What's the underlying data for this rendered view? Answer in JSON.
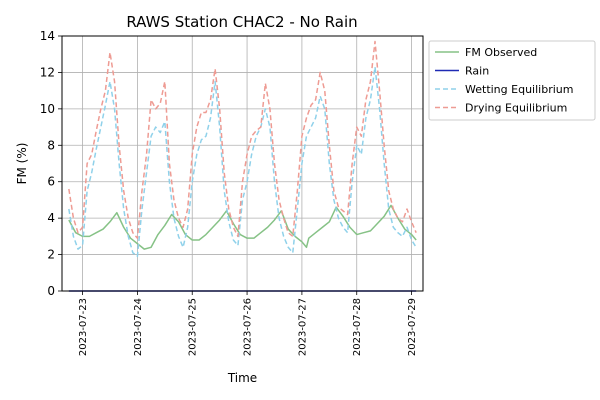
{
  "chart_data": {
    "type": "line",
    "title": "RAWS Station CHAC2 - No Rain",
    "xlabel": "Time",
    "ylabel": "FM (%)",
    "ylim": [
      0,
      14
    ],
    "yticks": [
      "0",
      "2",
      "4",
      "6",
      "8",
      "10",
      "12",
      "14"
    ],
    "xlim": [
      "2023-07-22T15:00",
      "2023-07-29T05:00"
    ],
    "xticks": [
      "2023-07-23",
      "2023-07-24",
      "2023-07-25",
      "2023-07-26",
      "2023-07-27",
      "2023-07-28",
      "2023-07-29"
    ],
    "grid": true,
    "legend_position": "upper-right",
    "x_start": "2023-07-22T18:00",
    "x_end": "2023-07-29T02:00",
    "series": [
      {
        "name": "FM Observed",
        "color": "#86c286",
        "style": "solid",
        "points": [
          [
            "2023-07-22T18:00",
            3.9
          ],
          [
            "2023-07-22T21:00",
            3.2
          ],
          [
            "2023-07-23T00:00",
            3.0
          ],
          [
            "2023-07-23T03:00",
            3.0
          ],
          [
            "2023-07-23T06:00",
            3.2
          ],
          [
            "2023-07-23T09:00",
            3.4
          ],
          [
            "2023-07-23T12:00",
            3.8
          ],
          [
            "2023-07-23T15:00",
            4.3
          ],
          [
            "2023-07-23T18:00",
            3.5
          ],
          [
            "2023-07-23T21:00",
            2.9
          ],
          [
            "2023-07-24T00:00",
            2.6
          ],
          [
            "2023-07-24T03:00",
            2.3
          ],
          [
            "2023-07-24T06:00",
            2.4
          ],
          [
            "2023-07-24T09:00",
            3.1
          ],
          [
            "2023-07-24T12:00",
            3.6
          ],
          [
            "2023-07-24T15:00",
            4.2
          ],
          [
            "2023-07-24T18:00",
            3.8
          ],
          [
            "2023-07-24T21:00",
            3.1
          ],
          [
            "2023-07-25T00:00",
            2.8
          ],
          [
            "2023-07-25T03:00",
            2.8
          ],
          [
            "2023-07-25T06:00",
            3.1
          ],
          [
            "2023-07-25T09:00",
            3.5
          ],
          [
            "2023-07-25T12:00",
            3.9
          ],
          [
            "2023-07-25T15:00",
            4.4
          ],
          [
            "2023-07-25T18:00",
            3.7
          ],
          [
            "2023-07-25T21:00",
            3.1
          ],
          [
            "2023-07-26T00:00",
            2.9
          ],
          [
            "2023-07-26T03:00",
            2.9
          ],
          [
            "2023-07-26T06:00",
            3.2
          ],
          [
            "2023-07-26T09:00",
            3.5
          ],
          [
            "2023-07-26T12:00",
            3.9
          ],
          [
            "2023-07-26T15:00",
            4.4
          ],
          [
            "2023-07-26T18:00",
            3.4
          ],
          [
            "2023-07-26T21:00",
            3.0
          ],
          [
            "2023-07-27T00:00",
            2.7
          ],
          [
            "2023-07-27T02:00",
            2.4
          ],
          [
            "2023-07-27T03:00",
            2.9
          ],
          [
            "2023-07-27T06:00",
            3.2
          ],
          [
            "2023-07-27T09:00",
            3.5
          ],
          [
            "2023-07-27T12:00",
            3.8
          ],
          [
            "2023-07-27T15:00",
            4.6
          ],
          [
            "2023-07-27T18:00",
            4.1
          ],
          [
            "2023-07-27T21:00",
            3.5
          ],
          [
            "2023-07-28T00:00",
            3.1
          ],
          [
            "2023-07-28T03:00",
            3.2
          ],
          [
            "2023-07-28T06:00",
            3.3
          ],
          [
            "2023-07-28T09:00",
            3.7
          ],
          [
            "2023-07-28T12:00",
            4.1
          ],
          [
            "2023-07-28T15:00",
            4.7
          ],
          [
            "2023-07-28T18:00",
            4.0
          ],
          [
            "2023-07-28T21:00",
            3.4
          ],
          [
            "2023-07-29T00:00",
            3.1
          ],
          [
            "2023-07-29T02:00",
            2.8
          ]
        ]
      },
      {
        "name": "Rain",
        "color": "#1f2ab4",
        "style": "solid",
        "points": [
          [
            "2023-07-22T18:00",
            0
          ],
          [
            "2023-07-29T02:00",
            0
          ]
        ]
      },
      {
        "name": "Wetting Equilibrium",
        "color": "#8fd1ea",
        "style": "dashed",
        "points": [
          [
            "2023-07-22T18:00",
            4.5
          ],
          [
            "2023-07-22T20:00",
            3.0
          ],
          [
            "2023-07-22T22:00",
            2.3
          ],
          [
            "2023-07-23T00:00",
            2.5
          ],
          [
            "2023-07-23T02:00",
            5.5
          ],
          [
            "2023-07-23T04:00",
            6.5
          ],
          [
            "2023-07-23T06:00",
            7.8
          ],
          [
            "2023-07-23T08:00",
            9.0
          ],
          [
            "2023-07-23T10:00",
            10.2
          ],
          [
            "2023-07-23T12:00",
            11.5
          ],
          [
            "2023-07-23T14:00",
            10.0
          ],
          [
            "2023-07-23T16:00",
            7.0
          ],
          [
            "2023-07-23T18:00",
            4.5
          ],
          [
            "2023-07-23T20:00",
            3.0
          ],
          [
            "2023-07-23T22:00",
            2.1
          ],
          [
            "2023-07-24T00:00",
            1.9
          ],
          [
            "2023-07-24T02:00",
            4.5
          ],
          [
            "2023-07-24T04:00",
            6.5
          ],
          [
            "2023-07-24T06:00",
            8.5
          ],
          [
            "2023-07-24T08:00",
            9.0
          ],
          [
            "2023-07-24T10:00",
            8.7
          ],
          [
            "2023-07-24T12:00",
            9.3
          ],
          [
            "2023-07-24T14:00",
            6.0
          ],
          [
            "2023-07-24T16:00",
            4.0
          ],
          [
            "2023-07-24T18:00",
            3.0
          ],
          [
            "2023-07-24T20:00",
            2.4
          ],
          [
            "2023-07-24T22:00",
            3.5
          ],
          [
            "2023-07-25T00:00",
            6.0
          ],
          [
            "2023-07-25T02:00",
            7.5
          ],
          [
            "2023-07-25T04:00",
            8.3
          ],
          [
            "2023-07-25T06:00",
            8.5
          ],
          [
            "2023-07-25T08:00",
            9.5
          ],
          [
            "2023-07-25T10:00",
            11.5
          ],
          [
            "2023-07-25T12:00",
            9.0
          ],
          [
            "2023-07-25T14:00",
            5.5
          ],
          [
            "2023-07-25T16:00",
            3.8
          ],
          [
            "2023-07-25T18:00",
            2.8
          ],
          [
            "2023-07-25T20:00",
            2.5
          ],
          [
            "2023-07-25T22:00",
            5.0
          ],
          [
            "2023-07-26T00:00",
            6.0
          ],
          [
            "2023-07-26T02:00",
            7.5
          ],
          [
            "2023-07-26T04:00",
            8.5
          ],
          [
            "2023-07-26T06:00",
            9.0
          ],
          [
            "2023-07-26T08:00",
            10.0
          ],
          [
            "2023-07-26T10:00",
            9.0
          ],
          [
            "2023-07-26T12:00",
            6.0
          ],
          [
            "2023-07-26T14:00",
            4.0
          ],
          [
            "2023-07-26T16:00",
            3.0
          ],
          [
            "2023-07-26T18:00",
            2.4
          ],
          [
            "2023-07-26T20:00",
            2.1
          ],
          [
            "2023-07-26T22:00",
            4.5
          ],
          [
            "2023-07-27T00:00",
            7.0
          ],
          [
            "2023-07-27T02:00",
            8.5
          ],
          [
            "2023-07-27T04:00",
            9.0
          ],
          [
            "2023-07-27T06:00",
            9.5
          ],
          [
            "2023-07-27T08:00",
            10.7
          ],
          [
            "2023-07-27T10:00",
            10.0
          ],
          [
            "2023-07-27T12:00",
            7.0
          ],
          [
            "2023-07-27T14:00",
            5.0
          ],
          [
            "2023-07-27T16:00",
            4.0
          ],
          [
            "2023-07-27T18:00",
            3.5
          ],
          [
            "2023-07-27T20:00",
            3.2
          ],
          [
            "2023-07-27T22:00",
            6.0
          ],
          [
            "2023-07-28T00:00",
            8.0
          ],
          [
            "2023-07-28T02:00",
            7.5
          ],
          [
            "2023-07-28T04:00",
            9.5
          ],
          [
            "2023-07-28T06:00",
            10.5
          ],
          [
            "2023-07-28T08:00",
            12.3
          ],
          [
            "2023-07-28T10:00",
            10.0
          ],
          [
            "2023-07-28T12:00",
            7.0
          ],
          [
            "2023-07-28T14:00",
            4.5
          ],
          [
            "2023-07-28T16:00",
            3.5
          ],
          [
            "2023-07-28T18:00",
            3.2
          ],
          [
            "2023-07-28T20:00",
            3.0
          ],
          [
            "2023-07-28T22:00",
            3.5
          ],
          [
            "2023-07-29T00:00",
            2.8
          ],
          [
            "2023-07-29T02:00",
            2.4
          ]
        ]
      },
      {
        "name": "Drying Equilibrium",
        "color": "#ee9b93",
        "style": "dashed",
        "points": [
          [
            "2023-07-22T18:00",
            5.6
          ],
          [
            "2023-07-22T20:00",
            4.0
          ],
          [
            "2023-07-22T22:00",
            3.2
          ],
          [
            "2023-07-23T00:00",
            3.5
          ],
          [
            "2023-07-23T02:00",
            7.0
          ],
          [
            "2023-07-23T04:00",
            7.5
          ],
          [
            "2023-07-23T06:00",
            8.8
          ],
          [
            "2023-07-23T08:00",
            10.0
          ],
          [
            "2023-07-23T10:00",
            11.0
          ],
          [
            "2023-07-23T12:00",
            13.1
          ],
          [
            "2023-07-23T14:00",
            11.5
          ],
          [
            "2023-07-23T16:00",
            8.0
          ],
          [
            "2023-07-23T18:00",
            5.5
          ],
          [
            "2023-07-23T20:00",
            4.0
          ],
          [
            "2023-07-23T22:00",
            3.2
          ],
          [
            "2023-07-24T00:00",
            2.9
          ],
          [
            "2023-07-24T02:00",
            5.5
          ],
          [
            "2023-07-24T04:00",
            7.5
          ],
          [
            "2023-07-24T06:00",
            10.5
          ],
          [
            "2023-07-24T08:00",
            10.0
          ],
          [
            "2023-07-24T10:00",
            10.3
          ],
          [
            "2023-07-24T12:00",
            11.5
          ],
          [
            "2023-07-24T14:00",
            7.0
          ],
          [
            "2023-07-24T16:00",
            5.0
          ],
          [
            "2023-07-24T18:00",
            4.0
          ],
          [
            "2023-07-24T20:00",
            3.5
          ],
          [
            "2023-07-24T22:00",
            4.5
          ],
          [
            "2023-07-25T00:00",
            7.5
          ],
          [
            "2023-07-25T02:00",
            9.0
          ],
          [
            "2023-07-25T04:00",
            9.8
          ],
          [
            "2023-07-25T06:00",
            9.8
          ],
          [
            "2023-07-25T08:00",
            10.5
          ],
          [
            "2023-07-25T10:00",
            12.2
          ],
          [
            "2023-07-25T12:00",
            10.0
          ],
          [
            "2023-07-25T14:00",
            6.5
          ],
          [
            "2023-07-25T16:00",
            4.5
          ],
          [
            "2023-07-25T18:00",
            3.5
          ],
          [
            "2023-07-25T20:00",
            3.0
          ],
          [
            "2023-07-25T22:00",
            6.0
          ],
          [
            "2023-07-26T00:00",
            7.5
          ],
          [
            "2023-07-26T02:00",
            8.5
          ],
          [
            "2023-07-26T04:00",
            8.8
          ],
          [
            "2023-07-26T06:00",
            9.0
          ],
          [
            "2023-07-26T08:00",
            11.4
          ],
          [
            "2023-07-26T10:00",
            10.0
          ],
          [
            "2023-07-26T12:00",
            7.0
          ],
          [
            "2023-07-26T14:00",
            5.0
          ],
          [
            "2023-07-26T16:00",
            4.0
          ],
          [
            "2023-07-26T18:00",
            3.2
          ],
          [
            "2023-07-26T20:00",
            3.0
          ],
          [
            "2023-07-26T22:00",
            5.5
          ],
          [
            "2023-07-27T00:00",
            8.5
          ],
          [
            "2023-07-27T02:00",
            9.5
          ],
          [
            "2023-07-27T04:00",
            10.2
          ],
          [
            "2023-07-27T06:00",
            10.5
          ],
          [
            "2023-07-27T08:00",
            12.0
          ],
          [
            "2023-07-27T10:00",
            11.0
          ],
          [
            "2023-07-27T12:00",
            8.0
          ],
          [
            "2023-07-27T14:00",
            5.5
          ],
          [
            "2023-07-27T16:00",
            4.6
          ],
          [
            "2023-07-27T18:00",
            4.4
          ],
          [
            "2023-07-27T20:00",
            4.2
          ],
          [
            "2023-07-27T22:00",
            7.0
          ],
          [
            "2023-07-28T00:00",
            9.0
          ],
          [
            "2023-07-28T02:00",
            8.5
          ],
          [
            "2023-07-28T04:00",
            10.5
          ],
          [
            "2023-07-28T06:00",
            11.5
          ],
          [
            "2023-07-28T08:00",
            13.7
          ],
          [
            "2023-07-28T10:00",
            11.0
          ],
          [
            "2023-07-28T12:00",
            8.0
          ],
          [
            "2023-07-28T14:00",
            5.5
          ],
          [
            "2023-07-28T16:00",
            4.5
          ],
          [
            "2023-07-28T18:00",
            4.0
          ],
          [
            "2023-07-28T20:00",
            3.8
          ],
          [
            "2023-07-28T22:00",
            4.5
          ],
          [
            "2023-07-29T00:00",
            3.8
          ],
          [
            "2023-07-29T02:00",
            3.2
          ]
        ]
      }
    ]
  }
}
